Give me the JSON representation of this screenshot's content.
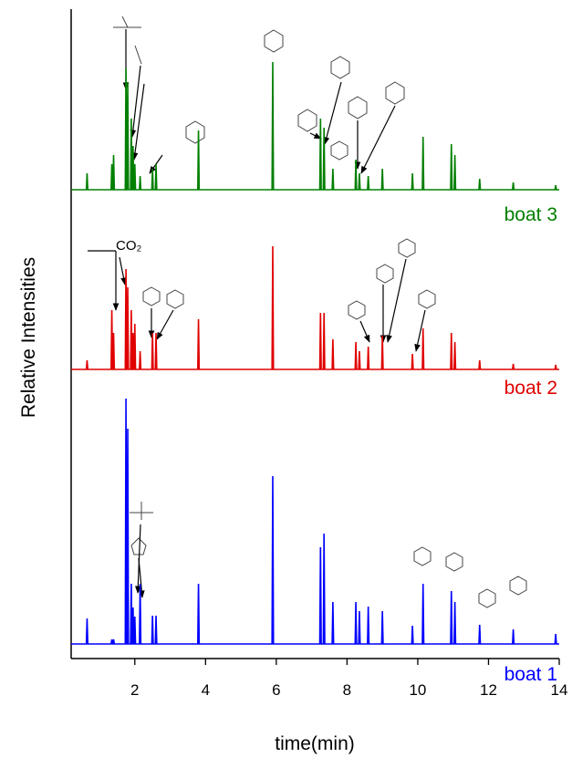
{
  "chart_data": {
    "type": "line",
    "xlabel": "time(min)",
    "ylabel": "Relative Intensities",
    "annotations": [
      "CO₂"
    ],
    "xlim": [
      0.2,
      14
    ],
    "xticks": [
      2,
      4,
      6,
      8,
      10,
      12,
      14
    ],
    "x": [
      0.2,
      0.63,
      0.65,
      0.67,
      1.33,
      1.35,
      1.37,
      1.38,
      1.4,
      1.42,
      1.73,
      1.75,
      1.77,
      1.78,
      1.8,
      1.82,
      1.88,
      1.9,
      1.92,
      1.93,
      1.95,
      1.97,
      1.98,
      2.0,
      2.02,
      2.13,
      2.15,
      2.17,
      2.48,
      2.5,
      2.52,
      2.58,
      2.6,
      2.62,
      3.78,
      3.8,
      3.82,
      5.88,
      5.9,
      5.92,
      7.23,
      7.25,
      7.27,
      7.33,
      7.35,
      7.37,
      7.58,
      7.6,
      7.62,
      8.23,
      8.25,
      8.27,
      8.33,
      8.35,
      8.37,
      8.58,
      8.6,
      8.62,
      8.98,
      9.0,
      9.02,
      9.83,
      9.85,
      9.87,
      10.13,
      10.15,
      10.17,
      10.93,
      10.95,
      10.97,
      11.03,
      11.05,
      11.07,
      11.73,
      11.75,
      11.77,
      12.68,
      12.7,
      12.72,
      13.88,
      13.9,
      13.92,
      14
    ],
    "series": [
      {
        "name": "boat 1",
        "color": "#0000ff",
        "values": [
          0,
          0,
          28,
          0,
          0,
          5,
          0,
          0,
          5,
          0,
          0,
          269,
          0,
          0,
          236,
          0,
          0,
          66,
          0,
          0,
          40,
          0,
          0,
          30,
          0,
          0,
          66,
          0,
          0,
          31,
          0,
          0,
          31,
          0,
          0,
          66,
          0,
          0,
          184,
          0,
          0,
          106,
          0,
          0,
          121,
          0,
          0,
          46,
          0,
          0,
          46,
          0,
          0,
          36,
          0,
          0,
          41,
          0,
          0,
          36,
          0,
          0,
          20,
          0,
          0,
          66,
          0,
          0,
          58,
          0,
          0,
          46,
          0,
          0,
          21,
          0,
          0,
          16,
          0,
          0,
          11,
          0,
          0
        ]
      },
      {
        "name": "boat 2",
        "color": "#e00000",
        "values": [
          0,
          0,
          10,
          0,
          0,
          65,
          0,
          0,
          40,
          0,
          0,
          110,
          0,
          0,
          90,
          0,
          0,
          65,
          0,
          0,
          40,
          0,
          0,
          50,
          0,
          0,
          20,
          0,
          0,
          40,
          0,
          0,
          40,
          0,
          0,
          55,
          0,
          0,
          135,
          0,
          0,
          62,
          0,
          0,
          62,
          0,
          0,
          33,
          0,
          0,
          30,
          0,
          0,
          20,
          0,
          0,
          25,
          0,
          0,
          37,
          0,
          0,
          17,
          0,
          0,
          45,
          0,
          0,
          40,
          0,
          0,
          30,
          0,
          0,
          10,
          0,
          0,
          6,
          0,
          0,
          5,
          0,
          0
        ]
      },
      {
        "name": "boat 3",
        "color": "#008000",
        "values": [
          0,
          0,
          18,
          0,
          0,
          28,
          0,
          0,
          38,
          0,
          0,
          133,
          0,
          0,
          118,
          0,
          0,
          78,
          0,
          0,
          48,
          0,
          0,
          28,
          0,
          0,
          15,
          0,
          0,
          23,
          0,
          0,
          28,
          0,
          0,
          65,
          0,
          0,
          140,
          0,
          0,
          78,
          0,
          0,
          68,
          0,
          0,
          23,
          0,
          0,
          33,
          0,
          0,
          18,
          0,
          0,
          15,
          0,
          0,
          23,
          0,
          0,
          18,
          0,
          0,
          58,
          0,
          0,
          50,
          0,
          0,
          38,
          0,
          0,
          12,
          0,
          0,
          8,
          0,
          0,
          5,
          0,
          0
        ]
      }
    ]
  }
}
